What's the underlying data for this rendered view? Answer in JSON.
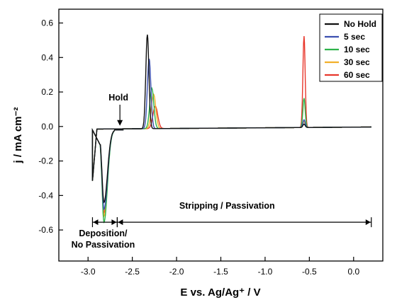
{
  "chart_data": {
    "type": "line",
    "xlabel": "E vs. Ag/Ag⁺ / V",
    "ylabel": "j / mA cm⁻²",
    "xlim": [
      -3.33,
      0.33
    ],
    "ylim": [
      -0.78,
      0.68
    ],
    "xticks": [
      -3.0,
      -2.5,
      -2.0,
      -1.5,
      -1.0,
      -0.5,
      0.0
    ],
    "xtick_labels": [
      "-3.0",
      "-2.5",
      "-2.0",
      "-1.5",
      "-1.0",
      "-0.5",
      "0.0"
    ],
    "yticks": [
      -0.6,
      -0.4,
      -0.2,
      0.0,
      0.2,
      0.4,
      0.6
    ],
    "ytick_labels": [
      "-0.6",
      "-0.4",
      "-0.2",
      "0.0",
      "0.2",
      "0.4",
      "0.6"
    ],
    "grid": false,
    "legend_position": "top-right",
    "series": [
      {
        "name": "No Hold",
        "color": "#111111",
        "stripping_peak": {
          "E": -2.33,
          "j": 0.545
        },
        "deposition_min": {
          "E": -2.82,
          "j": -0.42
        },
        "passivation_peak": {
          "E": -0.56,
          "j": 0.02
        }
      },
      {
        "name": "5 sec",
        "color": "#3b4fb0",
        "stripping_peak": {
          "E": -2.31,
          "j": 0.405
        },
        "deposition_min": {
          "E": -2.82,
          "j": -0.46
        },
        "passivation_peak": {
          "E": -0.56,
          "j": 0.045
        }
      },
      {
        "name": "10 sec",
        "color": "#2eb34a",
        "stripping_peak": {
          "E": -2.28,
          "j": 0.235
        },
        "deposition_min": {
          "E": -2.82,
          "j": -0.535
        },
        "passivation_peak": {
          "E": -0.56,
          "j": 0.17
        }
      },
      {
        "name": "30 sec",
        "color": "#f2b02a",
        "stripping_peak": {
          "E": -2.26,
          "j": 0.2
        },
        "deposition_min": {
          "E": -2.82,
          "j": -0.5
        },
        "passivation_peak": {
          "E": -0.56,
          "j": 0.035
        }
      },
      {
        "name": "60 sec",
        "color": "#e8372c",
        "stripping_peak": {
          "E": -2.24,
          "j": 0.13
        },
        "deposition_min": {
          "E": -2.82,
          "j": -0.48
        },
        "passivation_peak": {
          "E": -0.56,
          "j": 0.53
        }
      }
    ],
    "annotations": {
      "hold": {
        "text": "Hold",
        "E": -2.64,
        "j": 0.0
      },
      "deposition_line1": "Deposition/",
      "deposition_line2": "No Passivation",
      "deposition_range": [
        -2.95,
        -2.67
      ],
      "stripping": "Stripping / Passivation",
      "stripping_range": [
        -2.67,
        0.2
      ],
      "range_j": -0.555
    }
  }
}
